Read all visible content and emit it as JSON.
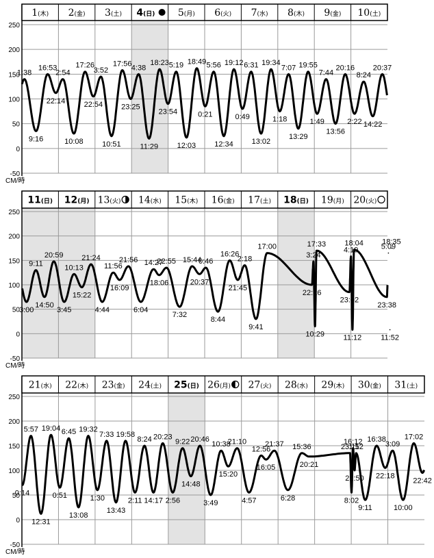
{
  "chart_data": {
    "type": "line",
    "unit_label": "CM/時",
    "ylim": [
      -50,
      250
    ],
    "yticks": [
      -50,
      0,
      50,
      100,
      150,
      200,
      250
    ],
    "grid": true,
    "panels": [
      {
        "days": [
          {
            "num": "1",
            "wd": "(木)",
            "bold": false,
            "shade": false,
            "moon": ""
          },
          {
            "num": "2",
            "wd": "(金)",
            "bold": false,
            "shade": false,
            "moon": ""
          },
          {
            "num": "3",
            "wd": "(土)",
            "bold": false,
            "shade": false,
            "moon": ""
          },
          {
            "num": "4",
            "wd": "(日)",
            "bold": true,
            "shade": true,
            "moon": "new"
          },
          {
            "num": "5",
            "wd": "(月)",
            "bold": false,
            "shade": false,
            "moon": ""
          },
          {
            "num": "6",
            "wd": "(火)",
            "bold": false,
            "shade": false,
            "moon": ""
          },
          {
            "num": "7",
            "wd": "(水)",
            "bold": false,
            "shade": false,
            "moon": ""
          },
          {
            "num": "8",
            "wd": "(木)",
            "bold": false,
            "shade": false,
            "moon": ""
          },
          {
            "num": "9",
            "wd": "(金)",
            "bold": false,
            "shade": false,
            "moon": ""
          },
          {
            "num": "10",
            "wd": "(土)",
            "bold": false,
            "shade": false,
            "moon": ""
          }
        ],
        "points": [
          {
            "d": 0,
            "t": "1:38",
            "v": 140,
            "hi": true
          },
          {
            "d": 0,
            "t": "9:16",
            "v": 35,
            "hi": false
          },
          {
            "d": 0,
            "t": "16:53",
            "v": 150,
            "hi": true
          },
          {
            "d": 0,
            "t": "22:14",
            "v": 112,
            "hi": false
          },
          {
            "d": 1,
            "t": "2:54",
            "v": 140,
            "hi": true
          },
          {
            "d": 1,
            "t": "10:08",
            "v": 30,
            "hi": false
          },
          {
            "d": 1,
            "t": "17:26",
            "v": 155,
            "hi": true
          },
          {
            "d": 1,
            "t": "22:54",
            "v": 105,
            "hi": false
          },
          {
            "d": 2,
            "t": "3:52",
            "v": 145,
            "hi": true
          },
          {
            "d": 2,
            "t": "10:51",
            "v": 25,
            "hi": false
          },
          {
            "d": 2,
            "t": "17:56",
            "v": 158,
            "hi": true
          },
          {
            "d": 2,
            "t": "23:25",
            "v": 100,
            "hi": false
          },
          {
            "d": 3,
            "t": "4:38",
            "v": 150,
            "hi": true
          },
          {
            "d": 3,
            "t": "11:29",
            "v": 20,
            "hi": false
          },
          {
            "d": 3,
            "t": "18:23",
            "v": 160,
            "hi": true
          },
          {
            "d": 3,
            "t": "23:54",
            "v": 90,
            "hi": false
          },
          {
            "d": 4,
            "t": "5:19",
            "v": 155,
            "hi": true
          },
          {
            "d": 4,
            "t": "12:03",
            "v": 22,
            "hi": false
          },
          {
            "d": 4,
            "t": "18:49",
            "v": 162,
            "hi": true
          },
          {
            "d": 5,
            "t": "0:21",
            "v": 85,
            "hi": false
          },
          {
            "d": 5,
            "t": "5:56",
            "v": 155,
            "hi": true
          },
          {
            "d": 5,
            "t": "12:34",
            "v": 25,
            "hi": false
          },
          {
            "d": 5,
            "t": "19:12",
            "v": 160,
            "hi": true
          },
          {
            "d": 6,
            "t": "0:49",
            "v": 80,
            "hi": false
          },
          {
            "d": 6,
            "t": "6:31",
            "v": 155,
            "hi": true
          },
          {
            "d": 6,
            "t": "13:02",
            "v": 30,
            "hi": false
          },
          {
            "d": 6,
            "t": "19:34",
            "v": 160,
            "hi": true
          },
          {
            "d": 7,
            "t": "1:18",
            "v": 75,
            "hi": false
          },
          {
            "d": 7,
            "t": "7:07",
            "v": 150,
            "hi": true
          },
          {
            "d": 7,
            "t": "13:29",
            "v": 40,
            "hi": false
          },
          {
            "d": 7,
            "t": "19:55",
            "v": 155,
            "hi": true
          },
          {
            "d": 8,
            "t": "1:49",
            "v": 70,
            "hi": false
          },
          {
            "d": 8,
            "t": "7:44",
            "v": 140,
            "hi": true
          },
          {
            "d": 8,
            "t": "13:56",
            "v": 50,
            "hi": false
          },
          {
            "d": 8,
            "t": "20:16",
            "v": 150,
            "hi": true
          },
          {
            "d": 9,
            "t": "2:22",
            "v": 70,
            "hi": false
          },
          {
            "d": 9,
            "t": "8:24",
            "v": 135,
            "hi": true
          },
          {
            "d": 9,
            "t": "14:22",
            "v": 65,
            "hi": false
          },
          {
            "d": 9,
            "t": "20:37",
            "v": 150,
            "hi": true
          }
        ]
      },
      {
        "days": [
          {
            "num": "11",
            "wd": "(日)",
            "bold": true,
            "shade": true,
            "moon": ""
          },
          {
            "num": "12",
            "wd": "(月)",
            "bold": true,
            "shade": true,
            "moon": ""
          },
          {
            "num": "13",
            "wd": "(火)",
            "bold": false,
            "shade": false,
            "moon": "first"
          },
          {
            "num": "14",
            "wd": "(水)",
            "bold": false,
            "shade": false,
            "moon": ""
          },
          {
            "num": "15",
            "wd": "(木)",
            "bold": false,
            "shade": false,
            "moon": ""
          },
          {
            "num": "16",
            "wd": "(金)",
            "bold": false,
            "shade": false,
            "moon": ""
          },
          {
            "num": "17",
            "wd": "(土)",
            "bold": false,
            "shade": false,
            "moon": ""
          },
          {
            "num": "18",
            "wd": "(日)",
            "bold": true,
            "shade": true,
            "moon": ""
          },
          {
            "num": "19",
            "wd": "(月)",
            "bold": false,
            "shade": false,
            "moon": ""
          },
          {
            "num": "20",
            "wd": "(火)",
            "bold": false,
            "shade": false,
            "moon": "full"
          }
        ],
        "points": [
          {
            "d": 0,
            "t": "3:00",
            "v": 65,
            "hi": false
          },
          {
            "d": 0,
            "t": "9:11",
            "v": 130,
            "hi": true
          },
          {
            "d": 0,
            "t": "14:50",
            "v": 75,
            "hi": false
          },
          {
            "d": 0,
            "t": "20:59",
            "v": 148,
            "hi": true
          },
          {
            "d": 1,
            "t": "3:45",
            "v": 65,
            "hi": false
          },
          {
            "d": 1,
            "t": "10:13",
            "v": 122,
            "hi": true
          },
          {
            "d": 1,
            "t": "15:22",
            "v": 95,
            "hi": false
          },
          {
            "d": 1,
            "t": "21:24",
            "v": 142,
            "hi": true
          },
          {
            "d": 2,
            "t": "4:44",
            "v": 65,
            "hi": false
          },
          {
            "d": 2,
            "t": "11:56",
            "v": 125,
            "hi": true
          },
          {
            "d": 2,
            "t": "16:09",
            "v": 110,
            "hi": false
          },
          {
            "d": 2,
            "t": "21:56",
            "v": 138,
            "hi": true
          },
          {
            "d": 3,
            "t": "6:04",
            "v": 65,
            "hi": false
          },
          {
            "d": 3,
            "t": "14:27",
            "v": 132,
            "hi": true
          },
          {
            "d": 3,
            "t": "18:06",
            "v": 120,
            "hi": false
          },
          {
            "d": 3,
            "t": "22:55",
            "v": 135,
            "hi": true
          },
          {
            "d": 4,
            "t": "7:32",
            "v": 55,
            "hi": false
          },
          {
            "d": 4,
            "t": "15:44",
            "v": 138,
            "hi": true
          },
          {
            "d": 4,
            "t": "20:37",
            "v": 122,
            "hi": false
          },
          {
            "d": 5,
            "t": "0:46",
            "v": 135,
            "hi": true
          },
          {
            "d": 5,
            "t": "8:44",
            "v": 45,
            "hi": false
          },
          {
            "d": 5,
            "t": "16:26",
            "v": 150,
            "hi": true
          },
          {
            "d": 5,
            "t": "21:45",
            "v": 110,
            "hi": false
          },
          {
            "d": 6,
            "t": "2:18",
            "v": 140,
            "hi": true
          },
          {
            "d": 6,
            "t": "9:41",
            "v": 30,
            "hi": false
          },
          {
            "d": 6,
            "t": "17:00",
            "v": 165,
            "hi": true
          },
          {
            "d": 7,
            "t": "22:26",
            "v": 100,
            "hi": false
          },
          {
            "d": 7,
            "t": "3:24",
            "v": 148,
            "hi": true
          },
          {
            "d": 7,
            "t": "10:29",
            "v": 15,
            "hi": false
          },
          {
            "d": 7,
            "t": "17:33",
            "v": 170,
            "hi": true
          },
          {
            "d": 8,
            "t": "23:02",
            "v": 85,
            "hi": false
          },
          {
            "d": 8,
            "t": "4:19",
            "v": 158,
            "hi": true
          },
          {
            "d": 8,
            "t": "11:12",
            "v": 8,
            "hi": false
          },
          {
            "d": 8,
            "t": "18:04",
            "v": 172,
            "hi": true
          },
          {
            "d": 9,
            "t": "23:38",
            "v": 75,
            "hi": false
          },
          {
            "d": 9,
            "t": "5:09",
            "v": 165,
            "hi": true
          },
          {
            "d": 9,
            "t": "11:52",
            "v": 8,
            "hi": false
          },
          {
            "d": 9,
            "t": "18:35",
            "v": 175,
            "hi": true
          }
        ]
      },
      {
        "days": [
          {
            "num": "21",
            "wd": "(水)",
            "bold": false,
            "shade": false,
            "moon": ""
          },
          {
            "num": "22",
            "wd": "(木)",
            "bold": false,
            "shade": false,
            "moon": ""
          },
          {
            "num": "23",
            "wd": "(金)",
            "bold": false,
            "shade": false,
            "moon": ""
          },
          {
            "num": "24",
            "wd": "(土)",
            "bold": false,
            "shade": false,
            "moon": ""
          },
          {
            "num": "25",
            "wd": "(日)",
            "bold": true,
            "shade": true,
            "moon": ""
          },
          {
            "num": "26",
            "wd": "(月)",
            "bold": false,
            "shade": false,
            "moon": "last"
          },
          {
            "num": "27",
            "wd": "(火)",
            "bold": false,
            "shade": false,
            "moon": ""
          },
          {
            "num": "28",
            "wd": "(水)",
            "bold": false,
            "shade": false,
            "moon": ""
          },
          {
            "num": "29",
            "wd": "(木)",
            "bold": false,
            "shade": false,
            "moon": ""
          },
          {
            "num": "30",
            "wd": "(金)",
            "bold": false,
            "shade": false,
            "moon": ""
          },
          {
            "num": "31",
            "wd": "(土)",
            "bold": false,
            "shade": false,
            "moon": ""
          }
        ],
        "points": [
          {
            "d": 0,
            "t": "0:14",
            "v": 70,
            "hi": false
          },
          {
            "d": 0,
            "t": "5:57",
            "v": 170,
            "hi": true
          },
          {
            "d": 0,
            "t": "12:31",
            "v": 12,
            "hi": false
          },
          {
            "d": 0,
            "t": "19:04",
            "v": 172,
            "hi": true
          },
          {
            "d": 1,
            "t": "0:51",
            "v": 65,
            "hi": false
          },
          {
            "d": 1,
            "t": "6:45",
            "v": 165,
            "hi": true
          },
          {
            "d": 1,
            "t": "13:08",
            "v": 25,
            "hi": false
          },
          {
            "d": 1,
            "t": "19:32",
            "v": 170,
            "hi": true
          },
          {
            "d": 2,
            "t": "1:30",
            "v": 60,
            "hi": false
          },
          {
            "d": 2,
            "t": "7:33",
            "v": 160,
            "hi": true
          },
          {
            "d": 2,
            "t": "13:43",
            "v": 35,
            "hi": false
          },
          {
            "d": 2,
            "t": "19:58",
            "v": 160,
            "hi": true
          },
          {
            "d": 3,
            "t": "2:11",
            "v": 55,
            "hi": false
          },
          {
            "d": 3,
            "t": "8:24",
            "v": 150,
            "hi": true
          },
          {
            "d": 3,
            "t": "14:17",
            "v": 55,
            "hi": false
          },
          {
            "d": 3,
            "t": "20:23",
            "v": 155,
            "hi": true
          },
          {
            "d": 4,
            "t": "2:56",
            "v": 55,
            "hi": false
          },
          {
            "d": 4,
            "t": "9:22",
            "v": 145,
            "hi": true
          },
          {
            "d": 4,
            "t": "14:48",
            "v": 88,
            "hi": false
          },
          {
            "d": 4,
            "t": "20:46",
            "v": 150,
            "hi": true
          },
          {
            "d": 5,
            "t": "3:49",
            "v": 50,
            "hi": false
          },
          {
            "d": 5,
            "t": "10:38",
            "v": 140,
            "hi": true
          },
          {
            "d": 5,
            "t": "15:20",
            "v": 108,
            "hi": false
          },
          {
            "d": 5,
            "t": "21:10",
            "v": 145,
            "hi": true
          },
          {
            "d": 6,
            "t": "4:57",
            "v": 55,
            "hi": false
          },
          {
            "d": 6,
            "t": "12:56",
            "v": 130,
            "hi": true
          },
          {
            "d": 6,
            "t": "16:05",
            "v": 122,
            "hi": false
          },
          {
            "d": 6,
            "t": "21:37",
            "v": 140,
            "hi": true
          },
          {
            "d": 7,
            "t": "6:28",
            "v": 60,
            "hi": false
          },
          {
            "d": 7,
            "t": "15:36",
            "v": 135,
            "hi": true
          },
          {
            "d": 7,
            "t": "20:21",
            "v": 128,
            "hi": false
          },
          {
            "d": 8,
            "t": "23:11",
            "v": 135,
            "hi": true
          },
          {
            "d": 8,
            "t": "8:02",
            "v": 55,
            "hi": false
          },
          {
            "d": 8,
            "t": "16:12",
            "v": 145,
            "hi": true
          },
          {
            "d": 8,
            "t": "21:50",
            "v": 100,
            "hi": false
          },
          {
            "d": 9,
            "t": "1:52",
            "v": 135,
            "hi": true
          },
          {
            "d": 9,
            "t": "9:11",
            "v": 40,
            "hi": false
          },
          {
            "d": 9,
            "t": "16:38",
            "v": 150,
            "hi": true
          },
          {
            "d": 9,
            "t": "22:18",
            "v": 105,
            "hi": false
          },
          {
            "d": 10,
            "t": "3:09",
            "v": 140,
            "hi": true
          },
          {
            "d": 10,
            "t": "10:00",
            "v": 40,
            "hi": false
          },
          {
            "d": 10,
            "t": "17:02",
            "v": 155,
            "hi": true
          },
          {
            "d": 10,
            "t": "22:42",
            "v": 95,
            "hi": false
          }
        ]
      }
    ]
  }
}
